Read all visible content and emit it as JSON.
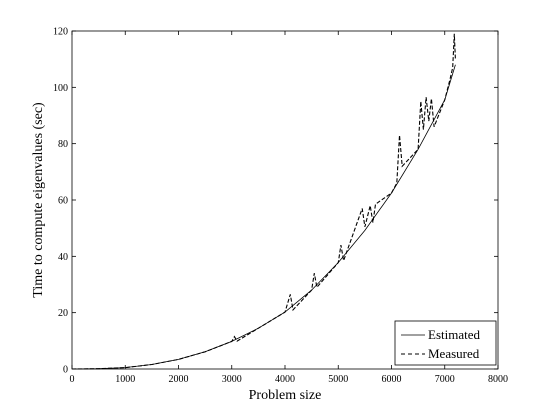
{
  "chart_data": {
    "type": "line",
    "title": "",
    "xlabel": "Problem size",
    "ylabel": "Time to compute eigenvalues (sec)",
    "xlim": [
      0,
      8000
    ],
    "ylim": [
      0,
      120
    ],
    "x_ticks": [
      "0",
      "1000",
      "2000",
      "3000",
      "4000",
      "5000",
      "6000",
      "7000",
      "8000"
    ],
    "y_ticks": [
      "0",
      "20",
      "40",
      "60",
      "80",
      "100",
      "120"
    ],
    "grid": false,
    "legend_position": "bottom-right",
    "series": [
      {
        "name": "Estimated",
        "style": "solid",
        "x": [
          0,
          500,
          1000,
          1500,
          2000,
          2500,
          3000,
          3500,
          4000,
          4500,
          5000,
          5500,
          6000,
          6500,
          7000,
          7200
        ],
        "y": [
          0,
          0.1,
          0.5,
          1.6,
          3.4,
          6.1,
          9.8,
          14.5,
          20.2,
          28.0,
          37.8,
          49.2,
          62.5,
          78.0,
          95.6,
          108.0
        ]
      },
      {
        "name": "Measured",
        "style": "dashed",
        "x": [
          0,
          500,
          1000,
          1500,
          2000,
          2500,
          3000,
          3050,
          3100,
          3500,
          4000,
          4100,
          4150,
          4500,
          4550,
          4600,
          5000,
          5050,
          5100,
          5450,
          5500,
          5600,
          5650,
          5700,
          6000,
          6100,
          6150,
          6200,
          6500,
          6550,
          6600,
          6650,
          6700,
          6750,
          6800,
          7000,
          7100,
          7150,
          7180,
          7200
        ],
        "y": [
          0,
          0.1,
          0.5,
          1.6,
          3.4,
          6.1,
          9.8,
          11.5,
          9.9,
          14.5,
          20.2,
          26.5,
          21.0,
          28.0,
          34.0,
          29.0,
          37.8,
          44.0,
          38.5,
          57.0,
          50.5,
          58.0,
          52.0,
          58.5,
          62.5,
          66.0,
          83.0,
          72.0,
          78.0,
          95.0,
          85.0,
          96.5,
          88.0,
          96.0,
          86.0,
          95.6,
          103.0,
          107.0,
          119.0,
          110.0
        ]
      }
    ]
  }
}
